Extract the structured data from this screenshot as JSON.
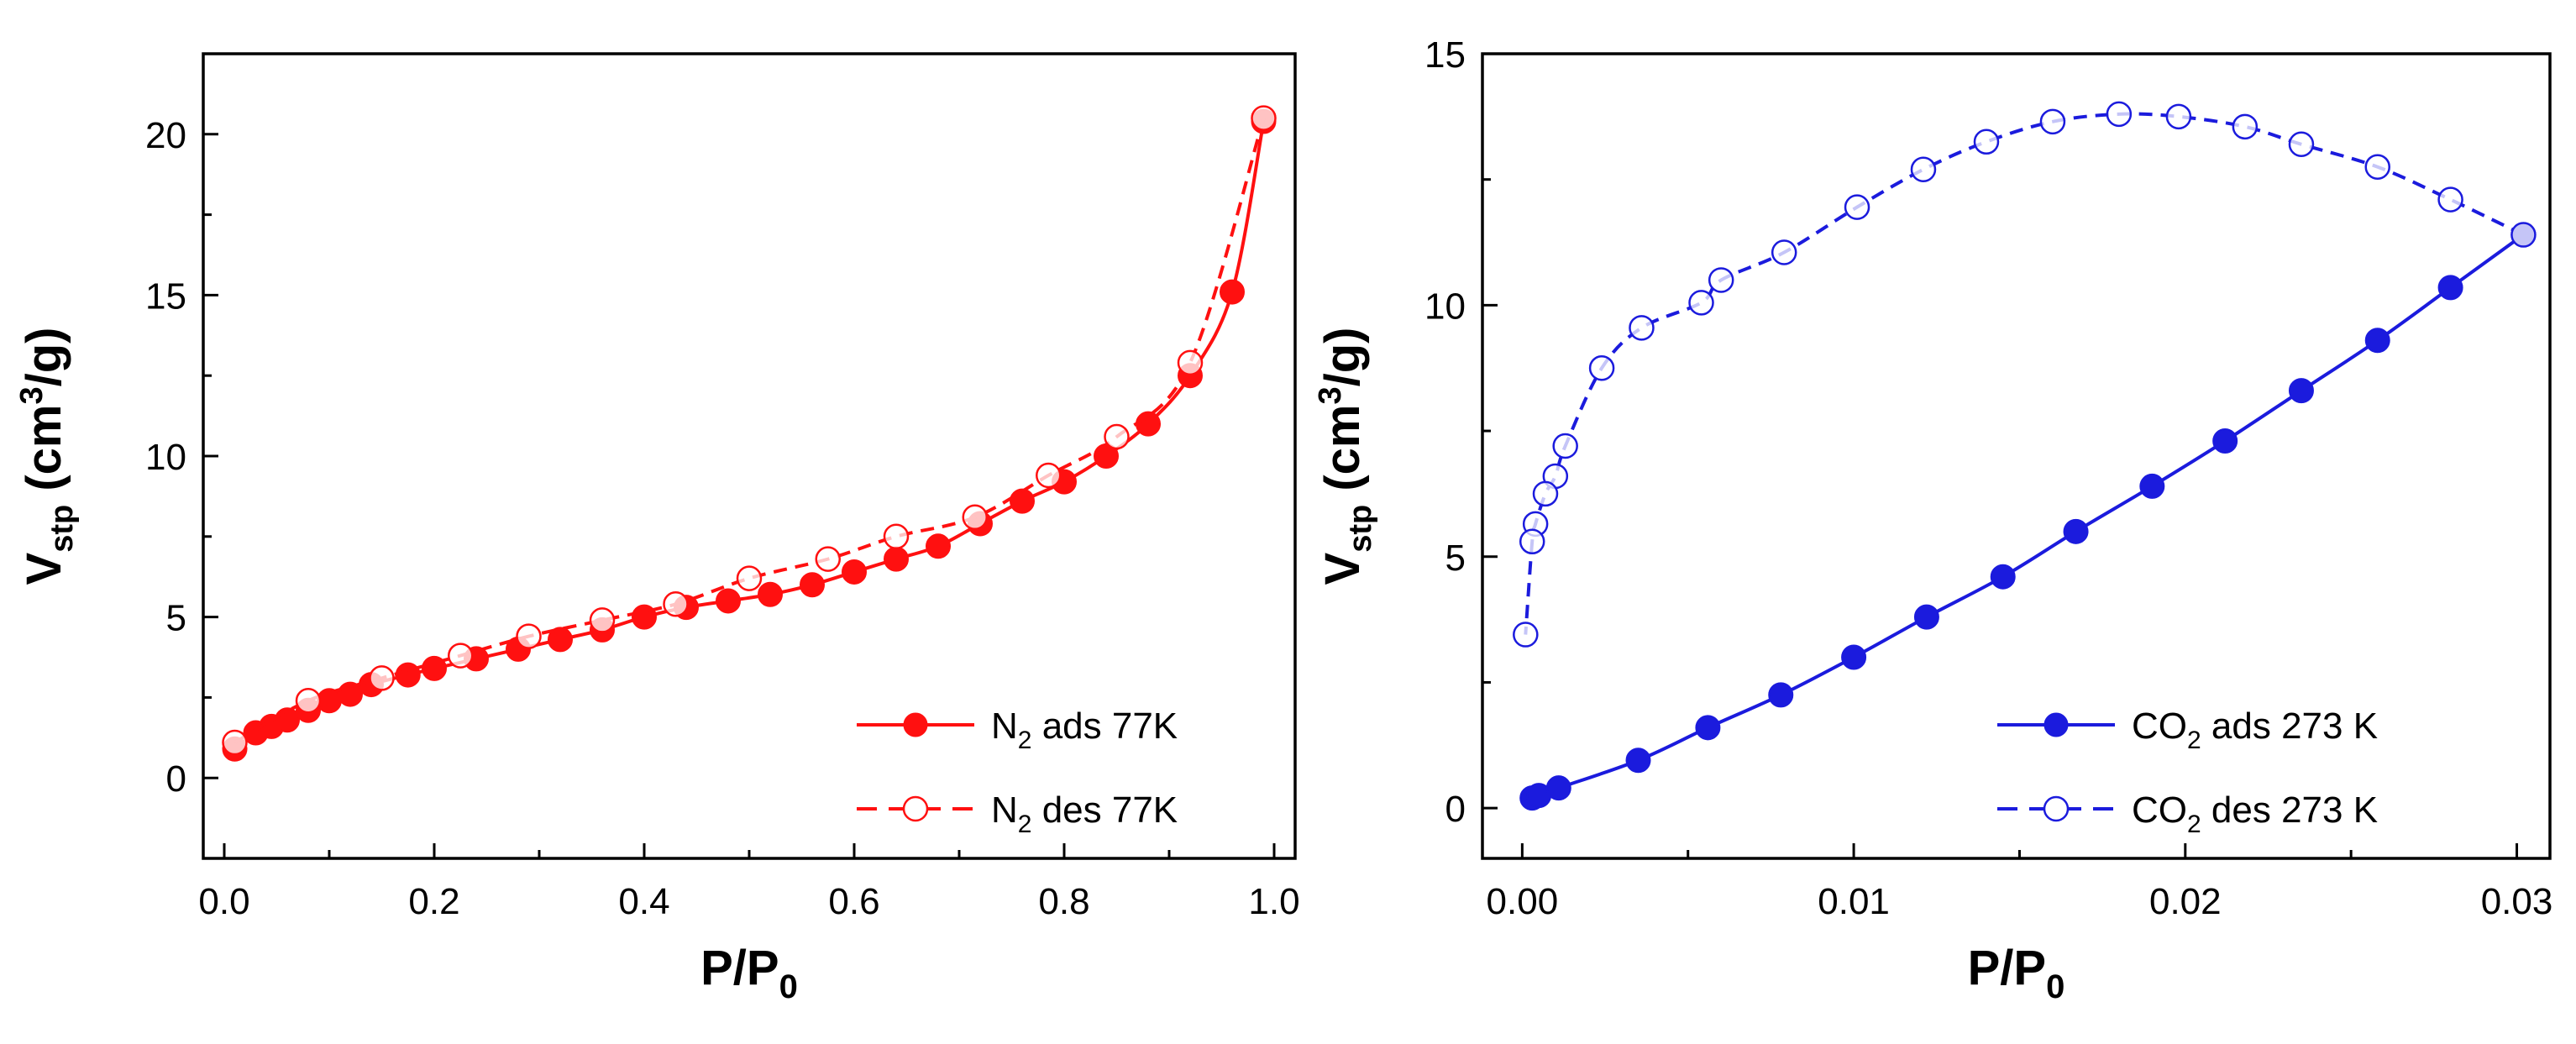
{
  "chart_data": [
    {
      "type": "line",
      "xlabel": "P/P",
      "xlabel_sub": "0",
      "ylabel": "V",
      "ylabel_sub": "stp",
      "ylabel_unit_pre": " (cm",
      "ylabel_unit_sup": "3",
      "ylabel_unit_post": "/g)",
      "xlim": [
        -0.02,
        1.02
      ],
      "ylim": [
        -2.5,
        22.5
      ],
      "xticks": [
        0.0,
        0.2,
        0.4,
        0.6,
        0.8,
        1.0
      ],
      "xtick_labels": [
        "0.0",
        "0.2",
        "0.4",
        "0.6",
        "0.8",
        "1.0"
      ],
      "yticks": [
        0,
        5,
        10,
        15,
        20
      ],
      "ytick_labels": [
        "0",
        "5",
        "10",
        "15",
        "20"
      ],
      "legend_position": "bottom-right",
      "series": [
        {
          "name": "N2 ads 77K",
          "legend_pre": "N",
          "legend_sub": "2",
          "legend_post": " ads 77K",
          "color": "#ff1010",
          "marker": "filled-circle",
          "line": "solid",
          "x": [
            0.01,
            0.03,
            0.045,
            0.06,
            0.08,
            0.1,
            0.12,
            0.14,
            0.175,
            0.2,
            0.24,
            0.28,
            0.32,
            0.36,
            0.4,
            0.44,
            0.48,
            0.52,
            0.56,
            0.6,
            0.64,
            0.68,
            0.72,
            0.76,
            0.8,
            0.84,
            0.88,
            0.92,
            0.96,
            0.99
          ],
          "y": [
            0.9,
            1.4,
            1.6,
            1.8,
            2.1,
            2.4,
            2.6,
            2.9,
            3.2,
            3.4,
            3.7,
            4.0,
            4.3,
            4.6,
            5.0,
            5.3,
            5.5,
            5.7,
            6.0,
            6.4,
            6.8,
            7.2,
            7.9,
            8.6,
            9.2,
            10.0,
            11.0,
            12.5,
            15.1,
            20.4
          ]
        },
        {
          "name": "N2 des 77K",
          "legend_pre": "N",
          "legend_sub": "2",
          "legend_post": " des 77K",
          "color": "#ff1010",
          "marker": "open-circle",
          "line": "dashed",
          "x": [
            0.99,
            0.92,
            0.85,
            0.785,
            0.715,
            0.64,
            0.575,
            0.5,
            0.43,
            0.36,
            0.29,
            0.225,
            0.15,
            0.08,
            0.01
          ],
          "y": [
            20.5,
            12.9,
            10.6,
            9.4,
            8.1,
            7.5,
            6.8,
            6.2,
            5.4,
            4.9,
            4.4,
            3.8,
            3.1,
            2.4,
            1.1
          ]
        }
      ]
    },
    {
      "type": "line",
      "xlabel": "P/P",
      "xlabel_sub": "0",
      "ylabel": "V",
      "ylabel_sub": "stp",
      "ylabel_unit_pre": " (cm",
      "ylabel_unit_sup": "3",
      "ylabel_unit_post": "/g)",
      "xlim": [
        -0.0012,
        0.031
      ],
      "ylim": [
        -1,
        15
      ],
      "xticks": [
        0.0,
        0.01,
        0.02,
        0.03
      ],
      "xtick_labels": [
        "0.00",
        "0.01",
        "0.02",
        "0.03"
      ],
      "yticks": [
        0,
        5,
        10,
        15
      ],
      "ytick_labels": [
        "0",
        "5",
        "10",
        "15"
      ],
      "legend_position": "bottom-right",
      "series": [
        {
          "name": "CO2 ads 273 K",
          "legend_pre": "CO",
          "legend_sub": "2",
          "legend_post": " ads 273 K",
          "color": "#1b1bdd",
          "marker": "filled-circle",
          "line": "solid",
          "x": [
            0.0003,
            0.0005,
            0.0011,
            0.0035,
            0.0056,
            0.0078,
            0.01,
            0.0122,
            0.0145,
            0.0167,
            0.019,
            0.0212,
            0.0235,
            0.0258,
            0.028,
            0.0302
          ],
          "y": [
            0.2,
            0.25,
            0.4,
            0.95,
            1.6,
            2.25,
            3.0,
            3.8,
            4.6,
            5.5,
            6.4,
            7.3,
            8.3,
            9.3,
            10.35,
            11.4
          ]
        },
        {
          "name": "CO2 des 273 K",
          "legend_pre": "CO",
          "legend_sub": "2",
          "legend_post": " des 273 K",
          "color": "#1b1bdd",
          "marker": "open-circle",
          "line": "dashed",
          "x": [
            0.0302,
            0.028,
            0.0258,
            0.0235,
            0.0218,
            0.0198,
            0.018,
            0.016,
            0.014,
            0.0121,
            0.0101,
            0.0079,
            0.006,
            0.0054,
            0.0036,
            0.0024,
            0.0013,
            0.001,
            0.0007,
            0.0004,
            0.0003,
            0.0001
          ],
          "y": [
            11.4,
            12.1,
            12.75,
            13.2,
            13.55,
            13.75,
            13.8,
            13.65,
            13.25,
            12.7,
            11.95,
            11.05,
            10.5,
            10.05,
            9.55,
            8.75,
            7.2,
            6.6,
            6.25,
            5.65,
            5.3,
            3.45
          ]
        }
      ]
    }
  ]
}
